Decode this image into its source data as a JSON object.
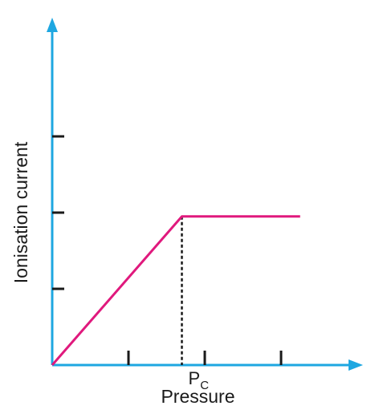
{
  "chart_data": {
    "type": "line",
    "title": "",
    "xlabel": "Pressure",
    "ylabel": "Ionisation current",
    "xlim": [
      0,
      4
    ],
    "ylim": [
      0,
      4
    ],
    "x_ticks": [
      1,
      2,
      3
    ],
    "y_ticks": [
      1,
      2,
      3
    ],
    "tick_labels_printed": false,
    "grid": false,
    "legend": "none",
    "annotations": [
      {
        "text": "P",
        "subscript": "C",
        "x": 1.7,
        "marker": "dashed vertical line from the curve down to the x-axis"
      }
    ],
    "series": [
      {
        "x": [
          0,
          1.7,
          3.25
        ],
        "y": [
          0,
          1.95,
          1.95
        ],
        "color": "#e0197d"
      }
    ],
    "colors": {
      "axis": "#1ea7e1",
      "series": "#e0197d",
      "tick": "#1a1a1a",
      "text": "#1a1a1a"
    }
  }
}
